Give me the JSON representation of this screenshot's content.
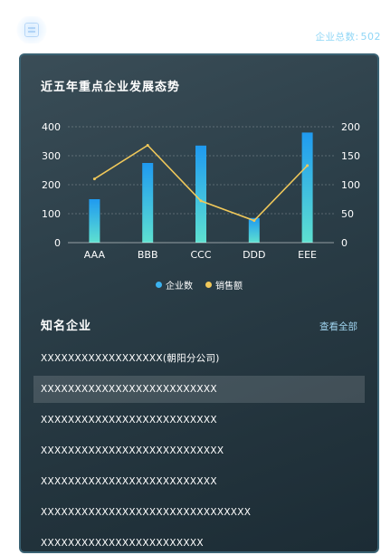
{
  "header": {
    "total_label": "企业总数:",
    "total_value": "502"
  },
  "chart_section": {
    "title": "近五年重点企业发展态势"
  },
  "chart_data": {
    "type": "bar",
    "categories": [
      "AAA",
      "BBB",
      "CCC",
      "DDD",
      "EEE"
    ],
    "series": [
      {
        "name": "企业数",
        "type": "bar",
        "axis": "left",
        "values": [
          150,
          275,
          335,
          85,
          380
        ],
        "color": "#2aa8ee"
      },
      {
        "name": "销售额",
        "type": "line",
        "axis": "right",
        "values": [
          110,
          168,
          72,
          38,
          133
        ],
        "color": "#f0c85a"
      }
    ],
    "y_left": {
      "min": 0,
      "max": 400,
      "ticks": [
        "0",
        "100",
        "200",
        "300",
        "400"
      ]
    },
    "y_right": {
      "min": 0,
      "max": 200,
      "ticks": [
        "0",
        "50",
        "100",
        "150",
        "200"
      ]
    },
    "grid": true,
    "legend_position": "bottom-center"
  },
  "legend": [
    {
      "label": "企业数",
      "color": "#3bb3f0"
    },
    {
      "label": "销售额",
      "color": "#f0c85a"
    }
  ],
  "companies": {
    "title": "知名企业",
    "view_all": "查看全部",
    "items": [
      "XXXXXXXXXXXXXXXXXX(朝阳分公司)",
      "XXXXXXXXXXXXXXXXXXXXXXXXXX",
      "XXXXXXXXXXXXXXXXXXXXXXXXXX",
      "XXXXXXXXXXXXXXXXXXXXXXXXXXX",
      "XXXXXXXXXXXXXXXXXXXXXXXXXX",
      "XXXXXXXXXXXXXXXXXXXXXXXXXXXXXXX",
      "XXXXXXXXXXXXXXXXXXXXXXXX"
    ],
    "active_index": 1
  }
}
